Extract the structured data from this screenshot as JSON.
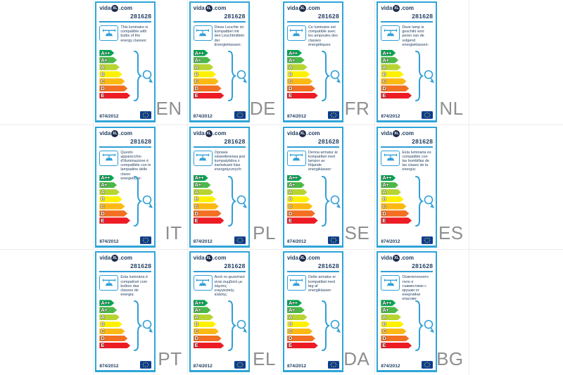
{
  "brand": {
    "prefix": "vida",
    "badge": "XL",
    "suffix": ".com"
  },
  "product_code": "281628",
  "regulation": "874/2012",
  "colors": {
    "card_border": "#2fa5d8",
    "accent_blue": "#2f9fd6",
    "text_navy": "#1e3c5f",
    "lang_gray": "#8f8f8f",
    "eu_flag_blue": "#0b3d91",
    "eu_star_yellow": "#ffd617",
    "grid_line": "#ececec"
  },
  "energy_classes": [
    {
      "label": "A++",
      "color": "#00a650"
    },
    {
      "label": "A+",
      "color": "#4db848"
    },
    {
      "label": "A",
      "color": "#b8d432"
    },
    {
      "label": "B",
      "color": "#fff200"
    },
    {
      "label": "C",
      "color": "#fdb913"
    },
    {
      "label": "D",
      "color": "#f36f21"
    },
    {
      "label": "E",
      "color": "#ed1c24"
    }
  ],
  "labels": [
    {
      "lang": "EN",
      "text": "This luminaire is compatible with bulbs of the energy classes:"
    },
    {
      "lang": "DE",
      "text": "Diese Leuchte ist kompatibel mit den Leuchtmitteln der Energieklassen:"
    },
    {
      "lang": "FR",
      "text": "Ce luminaire est compatible avec les ampoules des classes énergétiques:"
    },
    {
      "lang": "NL",
      "text": "Deze lamp is geschikt voor peren van de volgend energieklassen:"
    },
    {
      "lang": "IT",
      "text": "Questo apparecchio d'illuminazione è compatibile con le lampadine delle classi energetiche:"
    },
    {
      "lang": "PL",
      "text": "Oprawa oświetleniowa jest kompatybilna z żarówkami klas energetycznych:"
    },
    {
      "lang": "SE",
      "text": "Denna armatur är kompatibel med lampor av följande energiklasser:"
    },
    {
      "lang": "ES",
      "text": "Esta luminaria es compatible con las bombillas de las clases de la energía:"
    },
    {
      "lang": "PT",
      "text": "Esta luminária é compatível com bulbos das classes de energia:"
    },
    {
      "lang": "EL",
      "text": "Αυτό το φωτιστικό είναι συμβατό με λάμπες ενεργειακής κλάσης:"
    },
    {
      "lang": "DA",
      "text": "Dette armatur er kompatibel med løg af energiklasser:"
    },
    {
      "lang": "BG",
      "text": "Осветителното тяло е съвместимо с крушки от енергийни класове:"
    }
  ]
}
